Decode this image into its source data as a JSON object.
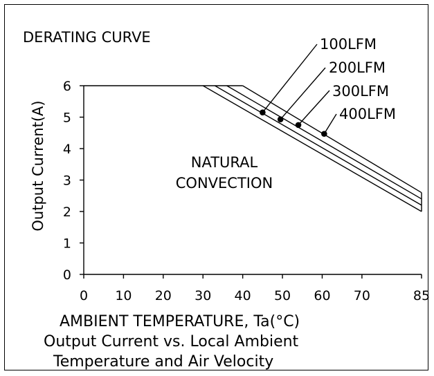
{
  "chart_data": {
    "type": "line",
    "title": "DERATING CURVE",
    "xlabel": "AMBIENT TEMPERATURE, Ta(°C)",
    "ylabel": "Output Current(A)",
    "caption_line1": "Output Current vs. Local Ambient",
    "caption_line2": "Temperature and Air Velocity",
    "annotation_line1": "NATURAL",
    "annotation_line2": "CONVECTION",
    "xlim": [
      0,
      85
    ],
    "ylim": [
      0,
      6
    ],
    "xticks": [
      "0",
      "10",
      "20",
      "30",
      "40",
      "50",
      "60",
      "70",
      "85"
    ],
    "yticks": [
      "0",
      "1",
      "2",
      "3",
      "4",
      "5",
      "6"
    ],
    "series": [
      {
        "name": "100LFM",
        "x": [
          30,
          85
        ],
        "y": [
          6,
          2.0
        ],
        "marker": [
          45,
          5.15
        ]
      },
      {
        "name": "200LFM",
        "x": [
          33,
          85
        ],
        "y": [
          6,
          2.2
        ],
        "marker": [
          49.5,
          4.93
        ]
      },
      {
        "name": "300LFM",
        "x": [
          36,
          85
        ],
        "y": [
          6,
          2.4
        ],
        "marker": [
          54,
          4.75
        ]
      },
      {
        "name": "400LFM",
        "x": [
          40,
          85
        ],
        "y": [
          6,
          2.6
        ],
        "marker": [
          60.5,
          4.47
        ]
      }
    ],
    "flat_level": 6,
    "grid": false,
    "line_color": "#000000"
  }
}
